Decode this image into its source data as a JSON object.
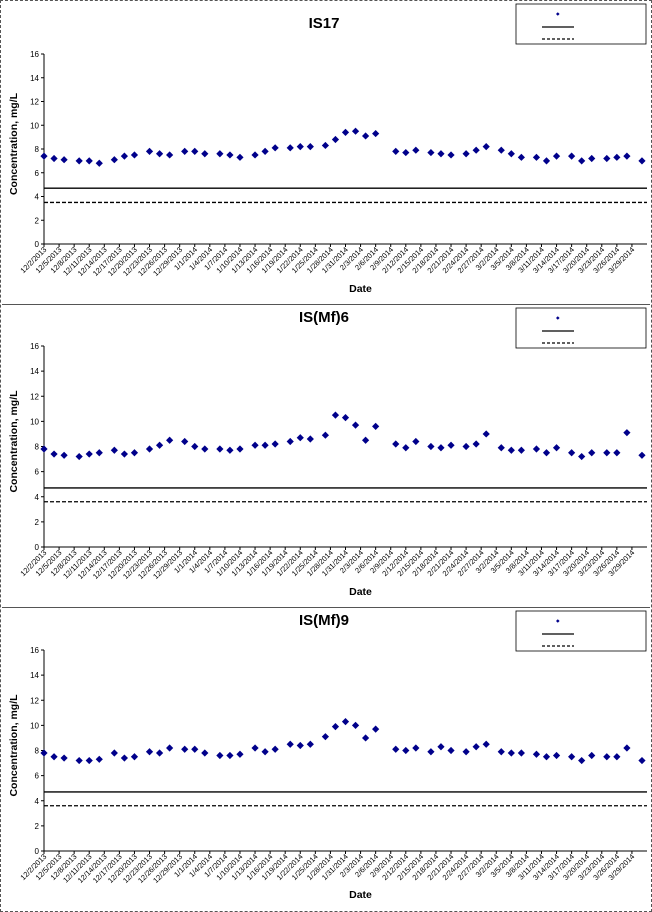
{
  "chart_data": [
    {
      "type": "scatter",
      "title": "IS17",
      "xlabel": "Date",
      "ylabel": "Concentration, mg/L",
      "ylim": [
        0,
        16
      ],
      "yticks": [
        0,
        2,
        4,
        6,
        8,
        10,
        12,
        14,
        16
      ],
      "xlim": [
        "2013-12-02",
        "2014-04-01"
      ],
      "x_tick_labels": [
        "12/2/2013",
        "12/5/2013",
        "12/8/2013",
        "12/11/2013",
        "12/14/2013",
        "12/17/2013",
        "12/20/2013",
        "12/23/2013",
        "12/26/2013",
        "12/29/2013",
        "1/1/2014",
        "1/4/2014",
        "1/7/2014",
        "1/10/2014",
        "1/13/2014",
        "1/16/2014",
        "1/19/2014",
        "1/22/2014",
        "1/25/2014",
        "1/28/2014",
        "1/31/2014",
        "2/3/2014",
        "2/6/2014",
        "2/9/2014",
        "2/12/2014",
        "2/15/2014",
        "2/18/2014",
        "2/21/2014",
        "2/24/2014",
        "2/27/2014",
        "3/2/2014",
        "3/5/2014",
        "3/8/2014",
        "3/11/2014",
        "3/14/2014",
        "3/17/2014",
        "3/20/2014",
        "3/23/2014",
        "3/26/2014",
        "3/29/2014"
      ],
      "grid": false,
      "legend_position": "top-right",
      "legend": [
        "",
        "",
        ""
      ],
      "marker_color": "#00008b",
      "series": [
        {
          "marker": "diamond",
          "points": [
            [
              "2013-12-02",
              7.4
            ],
            [
              "2013-12-04",
              7.2
            ],
            [
              "2013-12-06",
              7.1
            ],
            [
              "2013-12-09",
              7.0
            ],
            [
              "2013-12-11",
              7.0
            ],
            [
              "2013-12-13",
              6.8
            ],
            [
              "2013-12-16",
              7.1
            ],
            [
              "2013-12-18",
              7.4
            ],
            [
              "2013-12-20",
              7.5
            ],
            [
              "2013-12-23",
              7.8
            ],
            [
              "2013-12-25",
              7.6
            ],
            [
              "2013-12-27",
              7.5
            ],
            [
              "2013-12-30",
              7.8
            ],
            [
              "2014-01-01",
              7.8
            ],
            [
              "2014-01-03",
              7.6
            ],
            [
              "2014-01-06",
              7.6
            ],
            [
              "2014-01-08",
              7.5
            ],
            [
              "2014-01-10",
              7.3
            ],
            [
              "2014-01-13",
              7.5
            ],
            [
              "2014-01-15",
              7.8
            ],
            [
              "2014-01-17",
              8.1
            ],
            [
              "2014-01-20",
              8.1
            ],
            [
              "2014-01-22",
              8.2
            ],
            [
              "2014-01-24",
              8.2
            ],
            [
              "2014-01-27",
              8.3
            ],
            [
              "2014-01-29",
              8.8
            ],
            [
              "2014-01-31",
              9.4
            ],
            [
              "2014-02-02",
              9.5
            ],
            [
              "2014-02-04",
              9.1
            ],
            [
              "2014-02-06",
              9.3
            ],
            [
              "2014-02-10",
              7.8
            ],
            [
              "2014-02-12",
              7.7
            ],
            [
              "2014-02-14",
              7.9
            ],
            [
              "2014-02-17",
              7.7
            ],
            [
              "2014-02-19",
              7.6
            ],
            [
              "2014-02-21",
              7.5
            ],
            [
              "2014-02-24",
              7.6
            ],
            [
              "2014-02-26",
              7.9
            ],
            [
              "2014-02-28",
              8.2
            ],
            [
              "2014-03-03",
              7.9
            ],
            [
              "2014-03-05",
              7.6
            ],
            [
              "2014-03-07",
              7.3
            ],
            [
              "2014-03-10",
              7.3
            ],
            [
              "2014-03-12",
              7.0
            ],
            [
              "2014-03-14",
              7.4
            ],
            [
              "2014-03-17",
              7.4
            ],
            [
              "2014-03-19",
              7.0
            ],
            [
              "2014-03-21",
              7.2
            ],
            [
              "2014-03-24",
              7.2
            ],
            [
              "2014-03-26",
              7.3
            ],
            [
              "2014-03-28",
              7.4
            ],
            [
              "2014-03-31",
              7.0
            ]
          ]
        },
        {
          "line": "solid",
          "y": 4.7
        },
        {
          "line": "dashed",
          "y": 3.5
        }
      ]
    },
    {
      "type": "scatter",
      "title": "IS(Mf)6",
      "xlabel": "Date",
      "ylabel": "Concentration, mg/L",
      "ylim": [
        0,
        16
      ],
      "yticks": [
        0,
        2,
        4,
        6,
        8,
        10,
        12,
        14,
        16
      ],
      "xlim": [
        "2013-12-02",
        "2014-04-01"
      ],
      "x_tick_labels": [
        "12/2/2013",
        "12/5/2013",
        "12/8/2013",
        "12/11/2013",
        "12/14/2013",
        "12/17/2013",
        "12/20/2013",
        "12/23/2013",
        "12/26/2013",
        "12/29/2013",
        "1/1/2014",
        "1/4/2014",
        "1/7/2014",
        "1/10/2014",
        "1/13/2014",
        "1/16/2014",
        "1/19/2014",
        "1/22/2014",
        "1/25/2014",
        "1/28/2014",
        "1/31/2014",
        "2/3/2014",
        "2/6/2014",
        "2/9/2014",
        "2/12/2014",
        "2/15/2014",
        "2/18/2014",
        "2/21/2014",
        "2/24/2014",
        "2/27/2014",
        "3/2/2014",
        "3/5/2014",
        "3/8/2014",
        "3/11/2014",
        "3/14/2014",
        "3/17/2014",
        "3/20/2014",
        "3/23/2014",
        "3/26/2014",
        "3/29/2014"
      ],
      "grid": false,
      "legend_position": "top-right",
      "legend": [
        "",
        "",
        ""
      ],
      "marker_color": "#00008b",
      "series": [
        {
          "marker": "diamond",
          "points": [
            [
              "2013-12-02",
              7.8
            ],
            [
              "2013-12-04",
              7.4
            ],
            [
              "2013-12-06",
              7.3
            ],
            [
              "2013-12-09",
              7.2
            ],
            [
              "2013-12-11",
              7.4
            ],
            [
              "2013-12-13",
              7.5
            ],
            [
              "2013-12-16",
              7.7
            ],
            [
              "2013-12-18",
              7.4
            ],
            [
              "2013-12-20",
              7.5
            ],
            [
              "2013-12-23",
              7.8
            ],
            [
              "2013-12-25",
              8.1
            ],
            [
              "2013-12-27",
              8.5
            ],
            [
              "2013-12-30",
              8.4
            ],
            [
              "2014-01-01",
              8.0
            ],
            [
              "2014-01-03",
              7.8
            ],
            [
              "2014-01-06",
              7.8
            ],
            [
              "2014-01-08",
              7.7
            ],
            [
              "2014-01-10",
              7.8
            ],
            [
              "2014-01-13",
              8.1
            ],
            [
              "2014-01-15",
              8.1
            ],
            [
              "2014-01-17",
              8.2
            ],
            [
              "2014-01-20",
              8.4
            ],
            [
              "2014-01-22",
              8.7
            ],
            [
              "2014-01-24",
              8.6
            ],
            [
              "2014-01-27",
              8.9
            ],
            [
              "2014-01-29",
              10.5
            ],
            [
              "2014-01-31",
              10.3
            ],
            [
              "2014-02-02",
              9.7
            ],
            [
              "2014-02-04",
              8.5
            ],
            [
              "2014-02-06",
              9.6
            ],
            [
              "2014-02-10",
              8.2
            ],
            [
              "2014-02-12",
              7.9
            ],
            [
              "2014-02-14",
              8.4
            ],
            [
              "2014-02-17",
              8.0
            ],
            [
              "2014-02-19",
              7.9
            ],
            [
              "2014-02-21",
              8.1
            ],
            [
              "2014-02-24",
              8.0
            ],
            [
              "2014-02-26",
              8.2
            ],
            [
              "2014-02-28",
              9.0
            ],
            [
              "2014-03-03",
              7.9
            ],
            [
              "2014-03-05",
              7.7
            ],
            [
              "2014-03-07",
              7.7
            ],
            [
              "2014-03-10",
              7.8
            ],
            [
              "2014-03-12",
              7.5
            ],
            [
              "2014-03-14",
              7.9
            ],
            [
              "2014-03-17",
              7.5
            ],
            [
              "2014-03-19",
              7.2
            ],
            [
              "2014-03-21",
              7.5
            ],
            [
              "2014-03-24",
              7.5
            ],
            [
              "2014-03-26",
              7.5
            ],
            [
              "2014-03-28",
              9.1
            ],
            [
              "2014-03-31",
              7.3
            ]
          ]
        },
        {
          "line": "solid",
          "y": 4.7
        },
        {
          "line": "dashed",
          "y": 3.6
        }
      ]
    },
    {
      "type": "scatter",
      "title": "IS(Mf)9",
      "xlabel": "Date",
      "ylabel": "Concentration, mg/L",
      "ylim": [
        0,
        16
      ],
      "yticks": [
        0,
        2,
        4,
        6,
        8,
        10,
        12,
        14,
        16
      ],
      "xlim": [
        "2013-12-02",
        "2014-04-01"
      ],
      "x_tick_labels": [
        "12/2/2013",
        "12/5/2013",
        "12/8/2013",
        "12/11/2013",
        "12/14/2013",
        "12/17/2013",
        "12/20/2013",
        "12/23/2013",
        "12/26/2013",
        "12/29/2013",
        "1/1/2014",
        "1/4/2014",
        "1/7/2014",
        "1/10/2014",
        "1/13/2014",
        "1/16/2014",
        "1/19/2014",
        "1/22/2014",
        "1/25/2014",
        "1/28/2014",
        "1/31/2014",
        "2/3/2014",
        "2/6/2014",
        "2/9/2014",
        "2/12/2014",
        "2/15/2014",
        "2/18/2014",
        "2/21/2014",
        "2/24/2014",
        "2/27/2014",
        "3/2/2014",
        "3/5/2014",
        "3/8/2014",
        "3/11/2014",
        "3/14/2014",
        "3/17/2014",
        "3/20/2014",
        "3/23/2014",
        "3/26/2014",
        "3/29/2014"
      ],
      "grid": false,
      "legend_position": "top-right",
      "legend": [
        "",
        "",
        ""
      ],
      "marker_color": "#00008b",
      "series": [
        {
          "marker": "diamond",
          "points": [
            [
              "2013-12-02",
              7.8
            ],
            [
              "2013-12-04",
              7.5
            ],
            [
              "2013-12-06",
              7.4
            ],
            [
              "2013-12-09",
              7.2
            ],
            [
              "2013-12-11",
              7.2
            ],
            [
              "2013-12-13",
              7.3
            ],
            [
              "2013-12-16",
              7.8
            ],
            [
              "2013-12-18",
              7.4
            ],
            [
              "2013-12-20",
              7.5
            ],
            [
              "2013-12-23",
              7.9
            ],
            [
              "2013-12-25",
              7.8
            ],
            [
              "2013-12-27",
              8.2
            ],
            [
              "2013-12-30",
              8.1
            ],
            [
              "2014-01-01",
              8.1
            ],
            [
              "2014-01-03",
              7.8
            ],
            [
              "2014-01-06",
              7.6
            ],
            [
              "2014-01-08",
              7.6
            ],
            [
              "2014-01-10",
              7.7
            ],
            [
              "2014-01-13",
              8.2
            ],
            [
              "2014-01-15",
              7.9
            ],
            [
              "2014-01-17",
              8.1
            ],
            [
              "2014-01-20",
              8.5
            ],
            [
              "2014-01-22",
              8.4
            ],
            [
              "2014-01-24",
              8.5
            ],
            [
              "2014-01-27",
              9.1
            ],
            [
              "2014-01-29",
              9.9
            ],
            [
              "2014-01-31",
              10.3
            ],
            [
              "2014-02-02",
              10.0
            ],
            [
              "2014-02-04",
              9.0
            ],
            [
              "2014-02-06",
              9.7
            ],
            [
              "2014-02-10",
              8.1
            ],
            [
              "2014-02-12",
              8.0
            ],
            [
              "2014-02-14",
              8.2
            ],
            [
              "2014-02-17",
              7.9
            ],
            [
              "2014-02-19",
              8.3
            ],
            [
              "2014-02-21",
              8.0
            ],
            [
              "2014-02-24",
              7.9
            ],
            [
              "2014-02-26",
              8.3
            ],
            [
              "2014-02-28",
              8.5
            ],
            [
              "2014-03-03",
              7.9
            ],
            [
              "2014-03-05",
              7.8
            ],
            [
              "2014-03-07",
              7.8
            ],
            [
              "2014-03-10",
              7.7
            ],
            [
              "2014-03-12",
              7.5
            ],
            [
              "2014-03-14",
              7.6
            ],
            [
              "2014-03-17",
              7.5
            ],
            [
              "2014-03-19",
              7.2
            ],
            [
              "2014-03-21",
              7.6
            ],
            [
              "2014-03-24",
              7.5
            ],
            [
              "2014-03-26",
              7.5
            ],
            [
              "2014-03-28",
              8.2
            ],
            [
              "2014-03-31",
              7.2
            ]
          ]
        },
        {
          "line": "solid",
          "y": 4.7
        },
        {
          "line": "dashed",
          "y": 3.6
        }
      ]
    }
  ]
}
